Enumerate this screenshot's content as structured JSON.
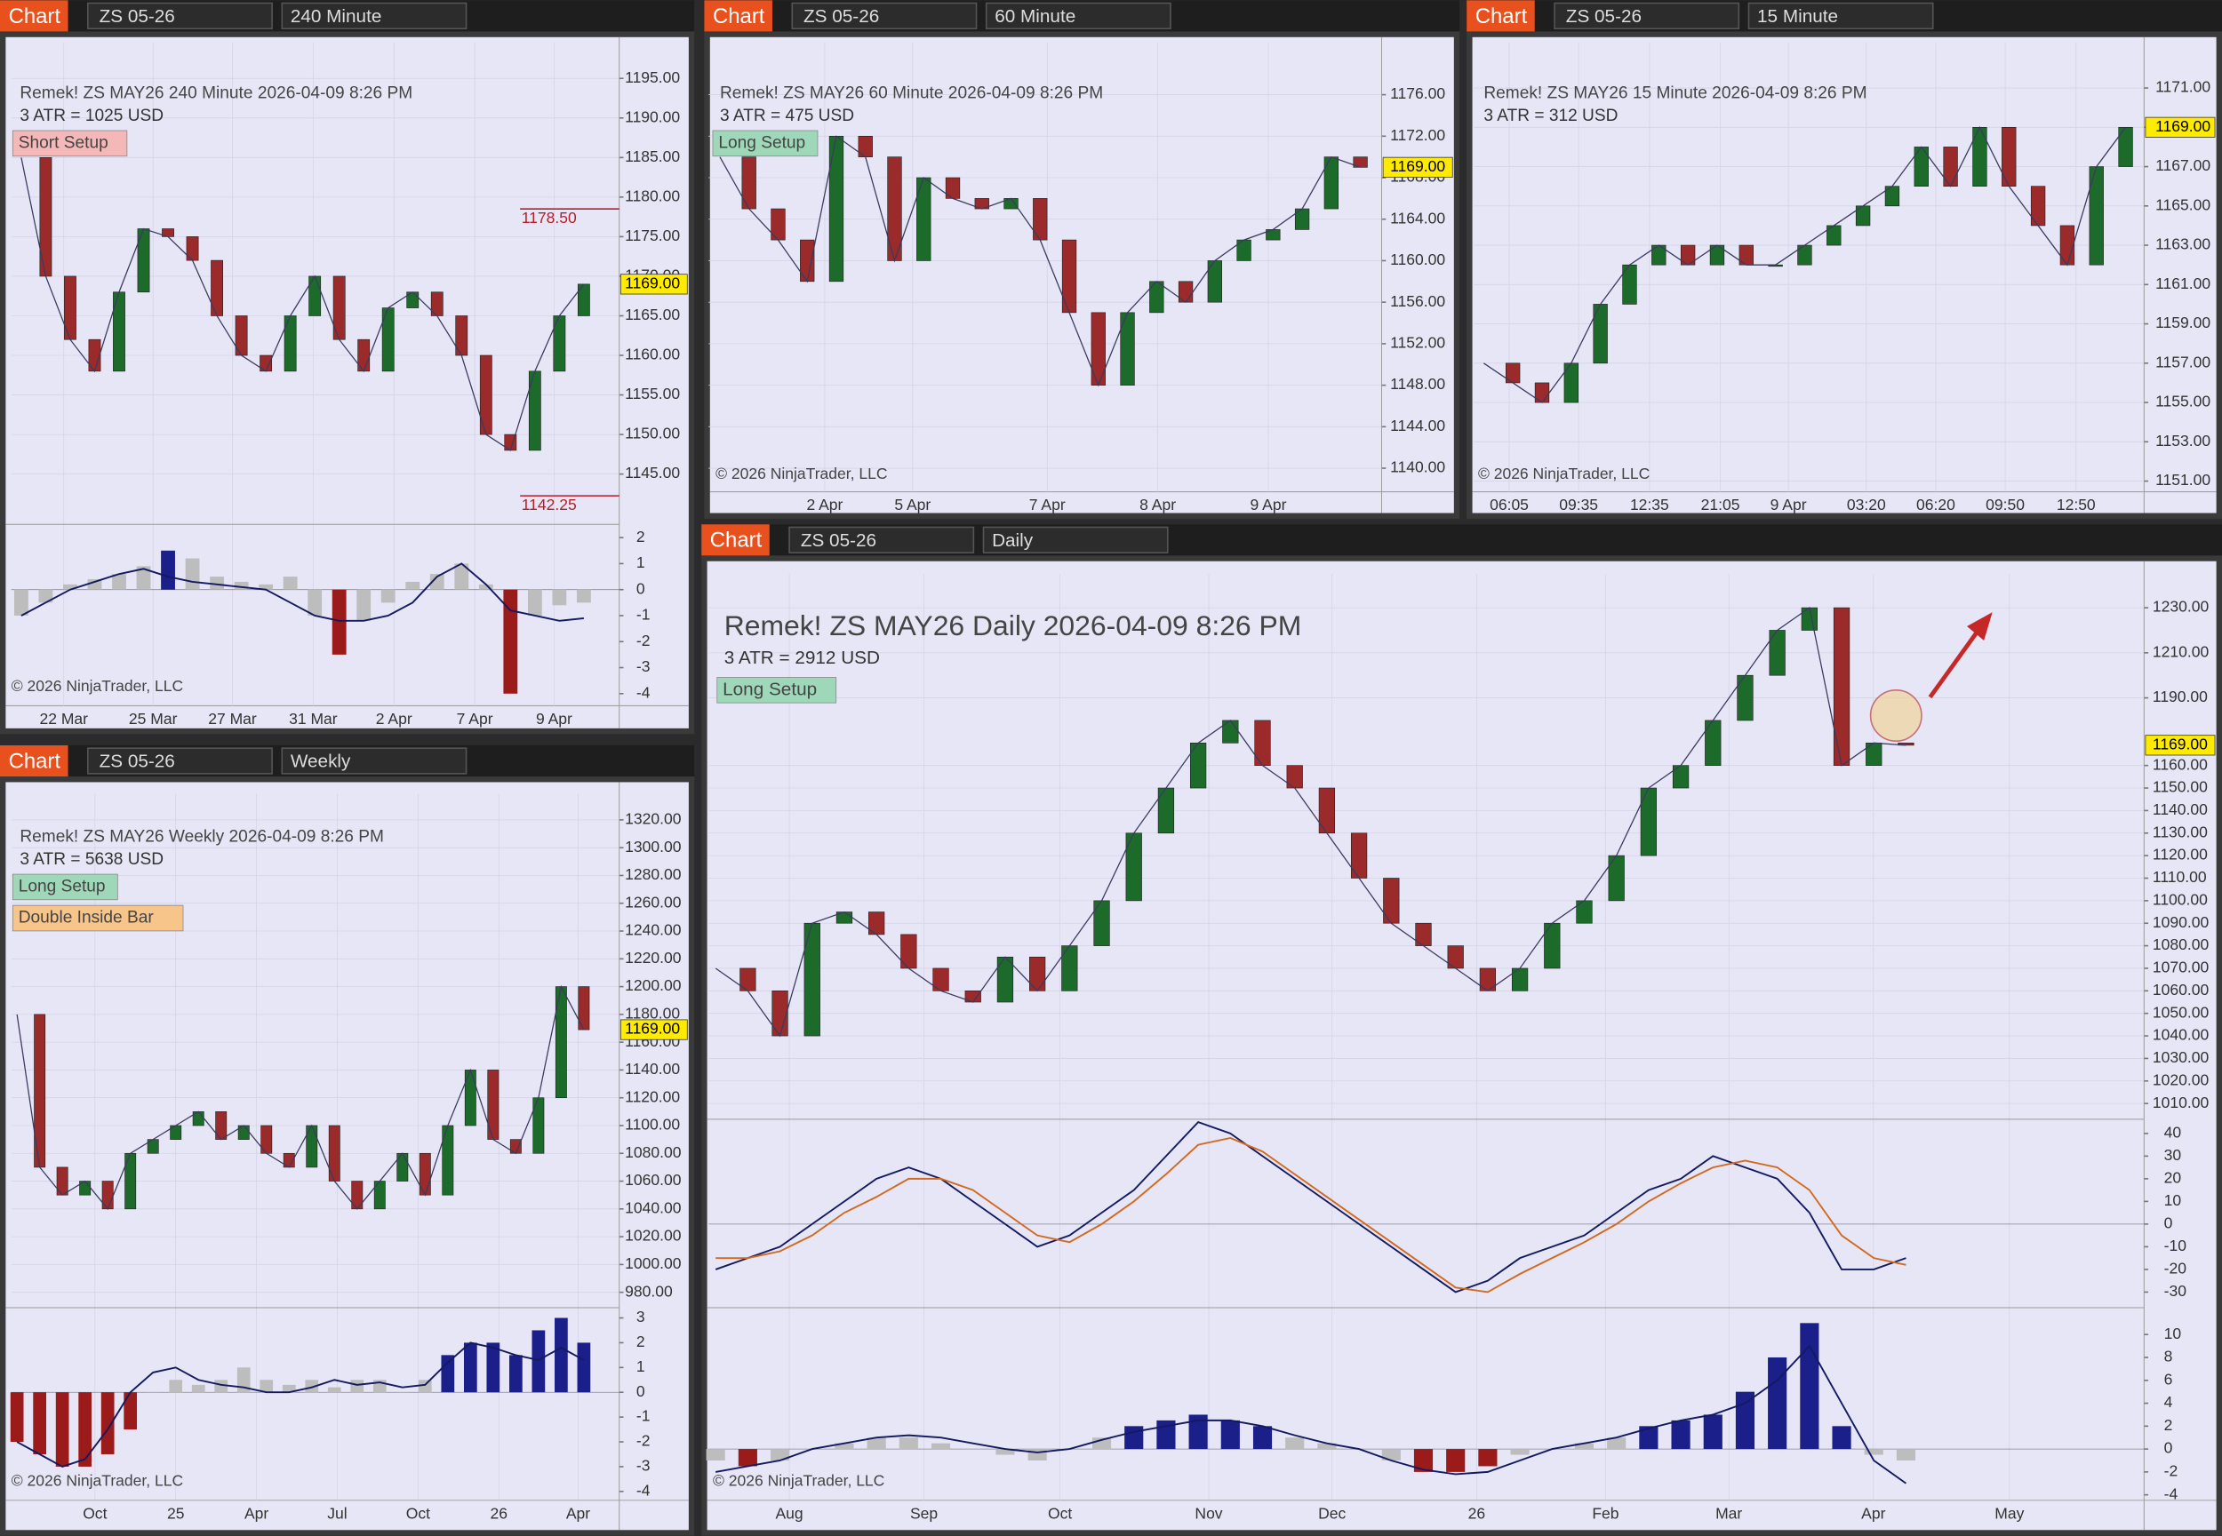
{
  "panels": [
    {
      "toolbar": {
        "tab": "Chart",
        "instrument": "ZS 05-26",
        "interval": "240 Minute"
      },
      "title": "Remek!  ZS MAY26  240 Minute  2026-04-09 8:26 PM",
      "atr": "3 ATR = 1025 USD",
      "labels": [
        {
          "text": "Short Setup",
          "color": "#f4b8b8"
        }
      ],
      "ylim": [
        1139,
        1199.5
      ],
      "yticks": [
        {
          "value": 1145,
          "label": "1145.00"
        },
        {
          "value": 1150,
          "label": "1150.00"
        },
        {
          "value": 1155,
          "label": "1155.00"
        },
        {
          "value": 1160,
          "label": "1160.00"
        },
        {
          "value": 1165,
          "label": "1165.00"
        },
        {
          "value": 1170,
          "label": "1170.00"
        },
        {
          "value": 1175,
          "label": "1175.00"
        },
        {
          "value": 1180,
          "label": "1180.00"
        },
        {
          "value": 1185,
          "label": "1185.00"
        },
        {
          "value": 1190,
          "label": "1190.00"
        },
        {
          "value": 1195,
          "label": "1195.00"
        }
      ],
      "xticks": [
        "22 Mar",
        "25 Mar",
        "27 Mar",
        "31 Mar",
        "2 Apr",
        "7 Apr",
        "9 Apr"
      ],
      "close": [
        1185,
        1170,
        1162,
        1158,
        1168,
        1176,
        1175,
        1172,
        1165,
        1160,
        1158,
        1165,
        1170,
        1162,
        1158,
        1166,
        1168,
        1165,
        1160,
        1150,
        1148,
        1158,
        1165,
        1169
      ],
      "last_price": {
        "value": 1169,
        "label": "1169.00"
      },
      "price_marks": [
        {
          "value": 1178.5,
          "label": "1178.50"
        },
        {
          "value": 1142.25,
          "label": "1142.25"
        }
      ],
      "indicators": [
        {
          "ylim": [
            -4.3,
            2.4
          ],
          "yticks": [
            2,
            1,
            0,
            -1,
            -2,
            -3,
            -4
          ],
          "histogram": [
            -1,
            -0.5,
            0.2,
            0.4,
            0.6,
            0.9,
            1.5,
            1.2,
            0.5,
            0.3,
            0.2,
            0.5,
            -1,
            -2.5,
            -1.2,
            -0.5,
            0.3,
            0.6,
            1,
            0.2,
            -4,
            -1,
            -0.6,
            -0.5
          ],
          "line": [
            -1,
            -0.5,
            0,
            0.3,
            0.6,
            0.8,
            0.5,
            0.3,
            0.2,
            0.1,
            0,
            -0.5,
            -1,
            -1.2,
            -1.2,
            -1,
            -0.5,
            0.5,
            1,
            0.2,
            -0.8,
            -1,
            -1.2,
            -1.1
          ]
        }
      ],
      "copyright": "© 2026 NinjaTrader, LLC"
    },
    {
      "toolbar": {
        "tab": "Chart",
        "instrument": "ZS 05-26",
        "interval": "60 Minute"
      },
      "title": "Remek!  ZS MAY26  60 Minute  2026-04-09 8:26 PM",
      "atr": "3 ATR = 475 USD",
      "labels": [
        {
          "text": "Long Setup",
          "color": "#9fd8b8"
        }
      ],
      "ylim": [
        1138,
        1181
      ],
      "yticks": [
        {
          "value": 1140,
          "label": "1140.00"
        },
        {
          "value": 1144,
          "label": "1144.00"
        },
        {
          "value": 1148,
          "label": "1148.00"
        },
        {
          "value": 1152,
          "label": "1152.00"
        },
        {
          "value": 1156,
          "label": "1156.00"
        },
        {
          "value": 1160,
          "label": "1160.00"
        },
        {
          "value": 1164,
          "label": "1164.00"
        },
        {
          "value": 1168,
          "label": "1168.00"
        },
        {
          "value": 1172,
          "label": "1172.00"
        },
        {
          "value": 1176,
          "label": "1176.00"
        }
      ],
      "xticks": [
        "2 Apr",
        "5 Apr",
        "7 Apr",
        "8 Apr",
        "9 Apr"
      ],
      "close": [
        1170,
        1165,
        1162,
        1158,
        1172,
        1170,
        1160,
        1168,
        1166,
        1165,
        1166,
        1162,
        1155,
        1148,
        1155,
        1158,
        1156,
        1160,
        1162,
        1163,
        1165,
        1170,
        1169
      ],
      "last_price": {
        "value": 1169,
        "label": "1169.00"
      },
      "price_marks": [],
      "indicators": [],
      "copyright": "© 2026 NinjaTrader, LLC"
    },
    {
      "toolbar": {
        "tab": "Chart",
        "instrument": "ZS 05-26",
        "interval": "15 Minute"
      },
      "title": "Remek!  ZS MAY26  15 Minute  2026-04-09 8:26 PM",
      "atr": "3 ATR = 312 USD",
      "labels": [],
      "ylim": [
        1150.6,
        1173.3
      ],
      "yticks": [
        {
          "value": 1151,
          "label": "1151.00"
        },
        {
          "value": 1153,
          "label": "1153.00"
        },
        {
          "value": 1155,
          "label": "1155.00"
        },
        {
          "value": 1157,
          "label": "1157.00"
        },
        {
          "value": 1159,
          "label": "1159.00"
        },
        {
          "value": 1161,
          "label": "1161.00"
        },
        {
          "value": 1163,
          "label": "1163.00"
        },
        {
          "value": 1165,
          "label": "1165.00"
        },
        {
          "value": 1167,
          "label": "1167.00"
        },
        {
          "value": 1169,
          "label": "1169.00"
        },
        {
          "value": 1171,
          "label": "1171.00"
        }
      ],
      "xticks": [
        "06:05",
        "09:35",
        "12:35",
        "21:05",
        "9 Apr",
        "03:20",
        "06:20",
        "09:50",
        "12:50"
      ],
      "close": [
        1157,
        1156,
        1155,
        1157,
        1160,
        1162,
        1163,
        1162,
        1163,
        1162,
        1162,
        1163,
        1164,
        1165,
        1166,
        1168,
        1166,
        1169,
        1166,
        1164,
        1162,
        1167,
        1169
      ],
      "last_price": {
        "value": 1169,
        "label": "1169.00"
      },
      "price_marks": [],
      "indicators": [],
      "copyright": "© 2026 NinjaTrader, LLC"
    },
    {
      "toolbar": {
        "tab": "Chart",
        "instrument": "ZS 05-26",
        "interval": "Weekly"
      },
      "title": "Remek!  ZS MAY26  Weekly  2026-04-09 8:26 PM",
      "atr": "3 ATR = 5638 USD",
      "labels": [
        {
          "text": "Long Setup",
          "color": "#9fd8b8"
        },
        {
          "text": "Double Inside Bar",
          "color": "#f7c58a"
        }
      ],
      "ylim": [
        972,
        1339
      ],
      "yticks": [
        {
          "value": 980,
          "label": "980.00"
        },
        {
          "value": 1000,
          "label": "1000.00"
        },
        {
          "value": 1020,
          "label": "1020.00"
        },
        {
          "value": 1040,
          "label": "1040.00"
        },
        {
          "value": 1060,
          "label": "1060.00"
        },
        {
          "value": 1080,
          "label": "1080.00"
        },
        {
          "value": 1100,
          "label": "1100.00"
        },
        {
          "value": 1120,
          "label": "1120.00"
        },
        {
          "value": 1140,
          "label": "1140.00"
        },
        {
          "value": 1160,
          "label": "1160.00"
        },
        {
          "value": 1180,
          "label": "1180.00"
        },
        {
          "value": 1200,
          "label": "1200.00"
        },
        {
          "value": 1220,
          "label": "1220.00"
        },
        {
          "value": 1240,
          "label": "1240.00"
        },
        {
          "value": 1260,
          "label": "1260.00"
        },
        {
          "value": 1280,
          "label": "1280.00"
        },
        {
          "value": 1300,
          "label": "1300.00"
        },
        {
          "value": 1320,
          "label": "1320.00"
        }
      ],
      "xticks": [
        "Oct",
        "25",
        "Apr",
        "Jul",
        "Oct",
        "26",
        "Apr"
      ],
      "close": [
        1180,
        1070,
        1050,
        1060,
        1040,
        1080,
        1090,
        1100,
        1110,
        1090,
        1100,
        1080,
        1070,
        1100,
        1060,
        1040,
        1060,
        1080,
        1050,
        1100,
        1140,
        1090,
        1080,
        1120,
        1200,
        1169
      ],
      "last_price": {
        "value": 1169,
        "label": "1169.00"
      },
      "price_marks": [],
      "indicators": [
        {
          "ylim": [
            -4.3,
            3.3
          ],
          "yticks": [
            3,
            2,
            1,
            0,
            -1,
            -2,
            -3,
            -4
          ],
          "histogram": [
            -2,
            -2.5,
            -3,
            -3,
            -2.5,
            -1.5,
            0,
            0.5,
            0.3,
            0.5,
            1,
            0.5,
            0.3,
            0.5,
            0.2,
            0.5,
            0.5,
            0,
            0.5,
            1.5,
            2,
            2,
            1.5,
            2.5,
            3,
            2
          ],
          "line": [
            -2,
            -2.5,
            -3,
            -2.7,
            -1.5,
            0,
            0.8,
            1,
            0.5,
            0.3,
            0.2,
            0,
            0,
            0.2,
            0.5,
            0.3,
            0.4,
            0.2,
            0.3,
            1.2,
            2,
            1.8,
            1.5,
            1.3,
            1.8,
            1.3
          ]
        }
      ],
      "copyright": "© 2026 NinjaTrader, LLC"
    },
    {
      "toolbar": {
        "tab": "Chart",
        "instrument": "ZS 05-26",
        "interval": "Daily"
      },
      "title": "Remek!  ZS MAY26  Daily  2026-04-09 8:26 PM",
      "atr": "3 ATR = 2912 USD",
      "labels": [
        {
          "text": "Long Setup",
          "color": "#9fd8b8"
        }
      ],
      "ylim": [
        1003,
        1245
      ],
      "yticks": [
        {
          "value": 1010,
          "label": "1010.00"
        },
        {
          "value": 1020,
          "label": "1020.00"
        },
        {
          "value": 1030,
          "label": "1030.00"
        },
        {
          "value": 1040,
          "label": "1040.00"
        },
        {
          "value": 1050,
          "label": "1050.00"
        },
        {
          "value": 1060,
          "label": "1060.00"
        },
        {
          "value": 1070,
          "label": "1070.00"
        },
        {
          "value": 1080,
          "label": "1080.00"
        },
        {
          "value": 1090,
          "label": "1090.00"
        },
        {
          "value": 1100,
          "label": "1100.00"
        },
        {
          "value": 1110,
          "label": "1110.00"
        },
        {
          "value": 1120,
          "label": "1120.00"
        },
        {
          "value": 1130,
          "label": "1130.00"
        },
        {
          "value": 1140,
          "label": "1140.00"
        },
        {
          "value": 1150,
          "label": "1150.00"
        },
        {
          "value": 1160,
          "label": "1160.00"
        },
        {
          "value": 1190,
          "label": "1190.00"
        },
        {
          "value": 1210,
          "label": "1210.00"
        },
        {
          "value": 1230,
          "label": "1230.00"
        }
      ],
      "xticks": [
        "Aug",
        "Sep",
        "Oct",
        "Nov",
        "Dec",
        "26",
        "Feb",
        "Mar",
        "Apr",
        "May"
      ],
      "close": [
        1070,
        1060,
        1040,
        1090,
        1095,
        1085,
        1070,
        1060,
        1055,
        1075,
        1060,
        1080,
        1100,
        1130,
        1150,
        1170,
        1180,
        1160,
        1150,
        1130,
        1110,
        1090,
        1080,
        1070,
        1060,
        1070,
        1090,
        1100,
        1120,
        1150,
        1160,
        1180,
        1200,
        1220,
        1230,
        1160,
        1170,
        1169
      ],
      "last_price": {
        "value": 1169,
        "label": "1169.00"
      },
      "price_marks": [],
      "indicators": [
        {
          "ylim": [
            -35,
            45
          ],
          "yticks": [
            40,
            30,
            20,
            10,
            0,
            -10,
            -20,
            -30
          ],
          "lines": [
            [
              -20,
              -15,
              -10,
              0,
              10,
              20,
              25,
              20,
              10,
              0,
              -10,
              -5,
              5,
              15,
              30,
              45,
              40,
              30,
              20,
              10,
              0,
              -10,
              -20,
              -30,
              -25,
              -15,
              -10,
              -5,
              5,
              15,
              20,
              30,
              25,
              20,
              5,
              -20,
              -20,
              -15
            ],
            [
              -15,
              -15,
              -12,
              -5,
              5,
              12,
              20,
              20,
              15,
              5,
              -5,
              -8,
              0,
              10,
              22,
              35,
              38,
              32,
              22,
              12,
              2,
              -8,
              -18,
              -28,
              -30,
              -22,
              -15,
              -8,
              0,
              10,
              18,
              25,
              28,
              25,
              15,
              -5,
              -15,
              -18
            ]
          ]
        },
        {
          "ylim": [
            -4.6,
            12.1
          ],
          "yticks": [
            10,
            8,
            6,
            4,
            2,
            0,
            -2,
            -4
          ],
          "histogram": [
            -1,
            -1.5,
            -1,
            0,
            0.5,
            1,
            1,
            0.5,
            0,
            -0.5,
            -1,
            0,
            1,
            2,
            2.5,
            3,
            2.5,
            2,
            1,
            0.5,
            0,
            -1,
            -2,
            -2,
            -1.5,
            -0.5,
            0,
            0.5,
            1,
            2,
            2.5,
            3,
            5,
            8,
            11,
            2,
            -0.5,
            -1
          ],
          "line": [
            -2,
            -1.5,
            -1,
            0,
            0.5,
            1,
            1.2,
            1,
            0.5,
            0,
            -0.3,
            0,
            0.8,
            1.5,
            2,
            2.5,
            2.5,
            2,
            1.2,
            0.5,
            0,
            -1,
            -1.8,
            -2.2,
            -2,
            -1,
            0,
            0.5,
            1,
            1.8,
            2.5,
            3,
            4,
            6,
            9,
            4,
            -1,
            -3
          ]
        }
      ],
      "copyright": "© 2026 NinjaTrader, LLC"
    }
  ]
}
